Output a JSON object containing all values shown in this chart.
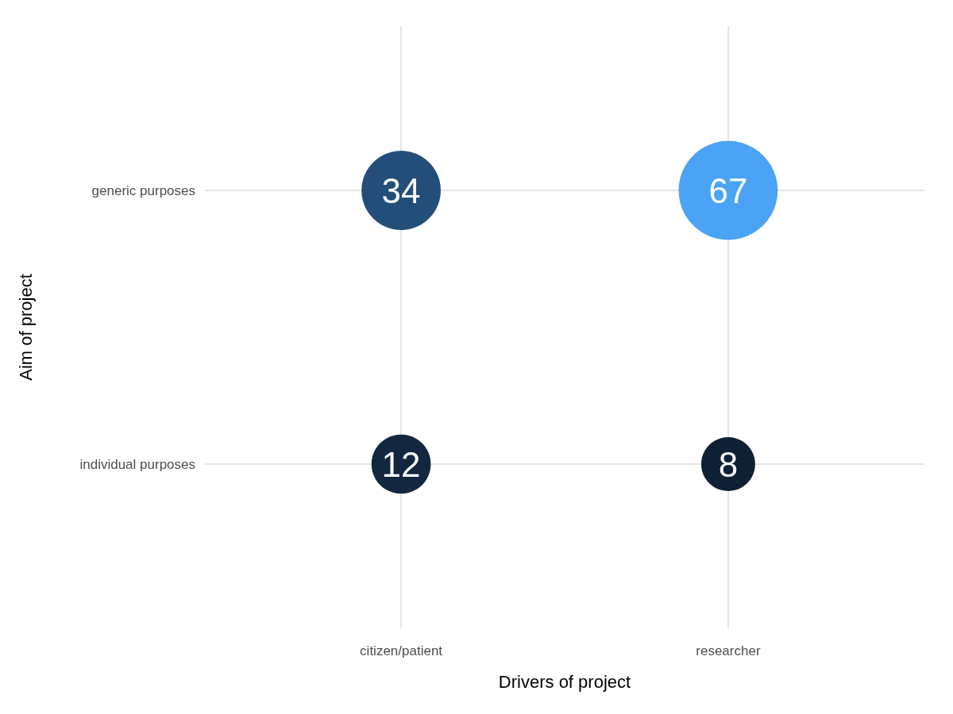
{
  "chart_data": {
    "type": "heatmap",
    "xlabel": "Drivers of project",
    "ylabel": "Aim of project",
    "categories": [
      "citizen/patient",
      "researcher"
    ],
    "y_categories": [
      "generic purposes",
      "individual purposes"
    ],
    "cells": [
      [
        34,
        67
      ],
      [
        12,
        8
      ]
    ],
    "colors": [
      [
        "#234e7a",
        "#4aa3f5"
      ],
      [
        "#132840",
        "#0f2035"
      ]
    ],
    "data_labels": true,
    "grid": true
  }
}
